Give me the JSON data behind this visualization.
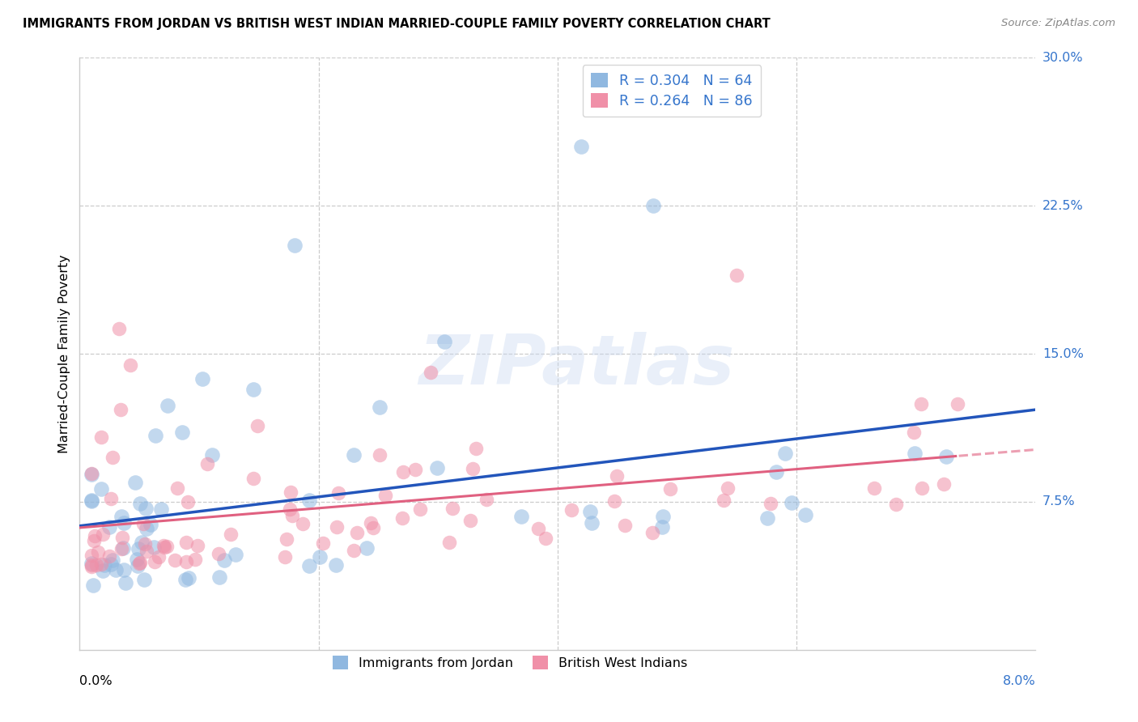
{
  "title": "IMMIGRANTS FROM JORDAN VS BRITISH WEST INDIAN MARRIED-COUPLE FAMILY POVERTY CORRELATION CHART",
  "source": "Source: ZipAtlas.com",
  "ylabel": "Married-Couple Family Poverty",
  "series1_label": "Immigrants from Jordan",
  "series2_label": "British West Indians",
  "series1_color": "#90b8e0",
  "series2_color": "#f090a8",
  "trendline1_color": "#2255bb",
  "trendline2_color": "#e06080",
  "legend1_text": "R = 0.304   N = 64",
  "legend2_text": "R = 0.264   N = 86",
  "xlim": [
    0.0,
    0.08
  ],
  "ylim": [
    0.0,
    0.3
  ],
  "xtick_left": "0.0%",
  "xtick_right": "8.0%",
  "yticks_pos": [
    0.075,
    0.15,
    0.225,
    0.3
  ],
  "ytick_labels": [
    "7.5%",
    "15.0%",
    "22.5%",
    "30.0%"
  ],
  "right_label_color": "#3575cc",
  "watermark_text": "ZIPatlas",
  "grid_color": "#cccccc",
  "background_color": "#ffffff"
}
